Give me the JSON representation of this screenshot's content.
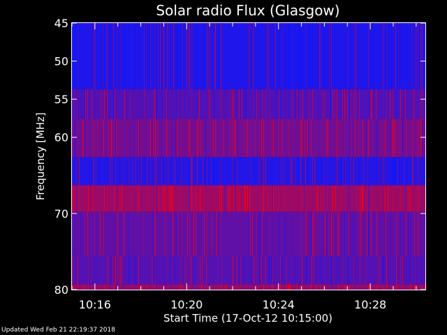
{
  "chart_data": {
    "type": "heatmap",
    "title": "Solar radio Flux (Glasgow)",
    "xlabel": "Start Time (17-Oct-12 10:15:00)",
    "ylabel": "Frequency [MHz]",
    "x_ticks": [
      "10:16",
      "10:20",
      "10:24",
      "10:28"
    ],
    "x_tick_minutes": [
      1,
      5,
      9,
      13
    ],
    "xlim_minutes": [
      0,
      15.4
    ],
    "y_ticks": [
      45,
      50,
      55,
      60,
      70,
      80
    ],
    "ylim_mhz": [
      45,
      80
    ],
    "y_axis_reversed": true,
    "colors": {
      "low": "#0a18ff",
      "high": "#ff0000",
      "background": "#000000"
    },
    "bands": [
      {
        "from": 45,
        "to": 53.7,
        "intensity": 0.08
      },
      {
        "from": 53.7,
        "to": 57.6,
        "intensity": 0.28
      },
      {
        "from": 57.6,
        "to": 62.6,
        "intensity": 0.42
      },
      {
        "from": 62.6,
        "to": 66.3,
        "intensity": 0.1
      },
      {
        "from": 66.3,
        "to": 69.8,
        "intensity": 0.6
      },
      {
        "from": 69.8,
        "to": 75.6,
        "intensity": 0.35
      },
      {
        "from": 75.6,
        "to": 79.3,
        "intensity": 0.3
      },
      {
        "from": 79.3,
        "to": 80,
        "intensity": 0.55
      }
    ]
  },
  "footer": {
    "updated": "Updated Wed Feb 21 22:19:37 2018"
  }
}
